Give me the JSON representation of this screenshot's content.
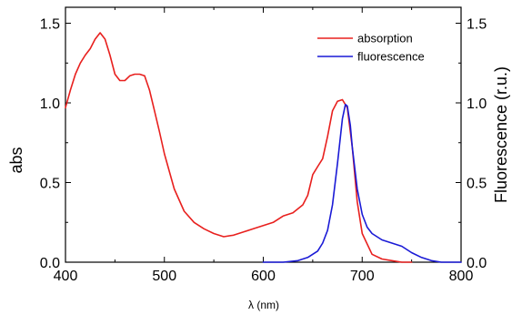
{
  "chart_data": {
    "type": "line",
    "title": "",
    "xlabel": "λ (nm)",
    "ylabel_left": "abs",
    "ylabel_right": "Fluorescence (r.u.)",
    "xlim": [
      400,
      800
    ],
    "ylim_left": [
      0,
      1.6
    ],
    "ylim_right": [
      0,
      1.6
    ],
    "x_ticks": [
      400,
      500,
      600,
      700,
      800
    ],
    "x_tick_labels": [
      "400",
      "500",
      "600",
      "700",
      "800"
    ],
    "y_ticks": [
      0,
      0.5,
      1.0,
      1.5
    ],
    "y_tick_labels_left": [
      "0.0",
      "0.5",
      "1.0",
      "1.5"
    ],
    "y_tick_labels_right": [
      "0.0",
      "0.5",
      "1.0",
      "1.5"
    ],
    "grid": false,
    "legend_position": "top-right",
    "series": [
      {
        "name": "absorption",
        "color": "#e8201e",
        "x": [
          400,
          405,
          410,
          415,
          420,
          425,
          430,
          435,
          440,
          445,
          450,
          455,
          460,
          465,
          470,
          475,
          480,
          485,
          490,
          495,
          500,
          510,
          520,
          530,
          540,
          550,
          560,
          570,
          580,
          590,
          600,
          610,
          620,
          630,
          640,
          645,
          650,
          655,
          660,
          665,
          670,
          675,
          680,
          685,
          690,
          695,
          700,
          710,
          720,
          730,
          740,
          750
        ],
        "values": [
          0.97,
          1.08,
          1.18,
          1.25,
          1.3,
          1.34,
          1.4,
          1.44,
          1.4,
          1.3,
          1.18,
          1.14,
          1.14,
          1.17,
          1.18,
          1.18,
          1.17,
          1.08,
          0.95,
          0.82,
          0.68,
          0.46,
          0.32,
          0.25,
          0.21,
          0.18,
          0.16,
          0.17,
          0.19,
          0.21,
          0.23,
          0.25,
          0.29,
          0.31,
          0.36,
          0.42,
          0.55,
          0.6,
          0.65,
          0.79,
          0.95,
          1.01,
          1.02,
          0.97,
          0.72,
          0.38,
          0.18,
          0.05,
          0.02,
          0.01,
          0.0,
          0.0
        ]
      },
      {
        "name": "fluorescence",
        "color": "#1a1ad6",
        "x": [
          600,
          620,
          635,
          645,
          655,
          660,
          665,
          670,
          675,
          680,
          683,
          685,
          688,
          690,
          695,
          700,
          705,
          710,
          720,
          730,
          740,
          750,
          760,
          770,
          780,
          790,
          800
        ],
        "values": [
          0.0,
          0.0,
          0.01,
          0.03,
          0.07,
          0.12,
          0.2,
          0.36,
          0.62,
          0.9,
          0.99,
          0.98,
          0.86,
          0.72,
          0.46,
          0.3,
          0.22,
          0.18,
          0.14,
          0.12,
          0.1,
          0.06,
          0.03,
          0.01,
          0.0,
          0.0,
          0.0
        ]
      }
    ]
  }
}
